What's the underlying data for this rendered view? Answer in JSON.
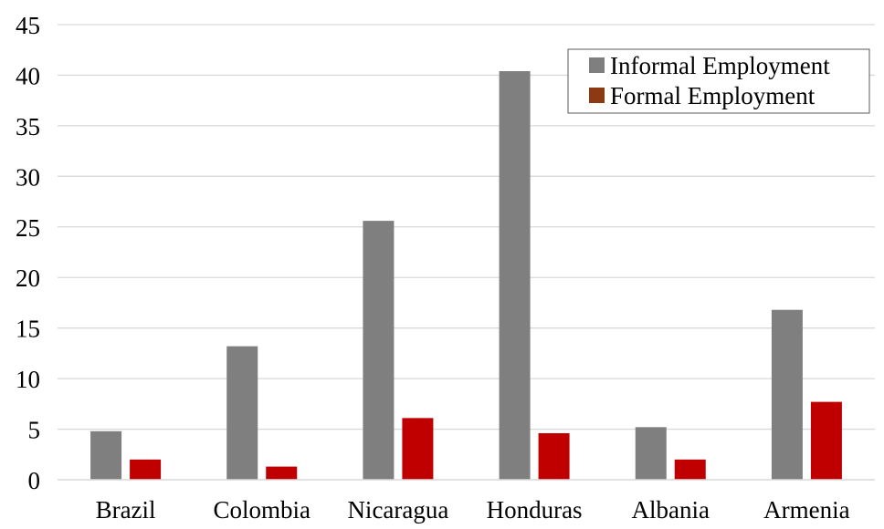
{
  "chart_data": {
    "type": "bar",
    "categories": [
      "Brazil",
      "Colombia",
      "Nicaragua",
      "Honduras",
      "Albania",
      "Armenia"
    ],
    "series": [
      {
        "name": "Informal Employment",
        "color": "#7f7f7f",
        "legend_color": "#7f7f7f",
        "values": [
          4.8,
          13.2,
          25.6,
          40.4,
          5.2,
          16.8
        ]
      },
      {
        "name": "Formal Employment",
        "color": "#c00000",
        "legend_color": "#8b3a12",
        "values": [
          2.0,
          1.3,
          6.1,
          4.6,
          2.0,
          7.7
        ]
      }
    ],
    "ylim": [
      0,
      45
    ],
    "yticks": [
      0,
      5,
      10,
      15,
      20,
      25,
      30,
      35,
      40,
      45
    ],
    "grid": true,
    "legend_position": "top-right"
  }
}
